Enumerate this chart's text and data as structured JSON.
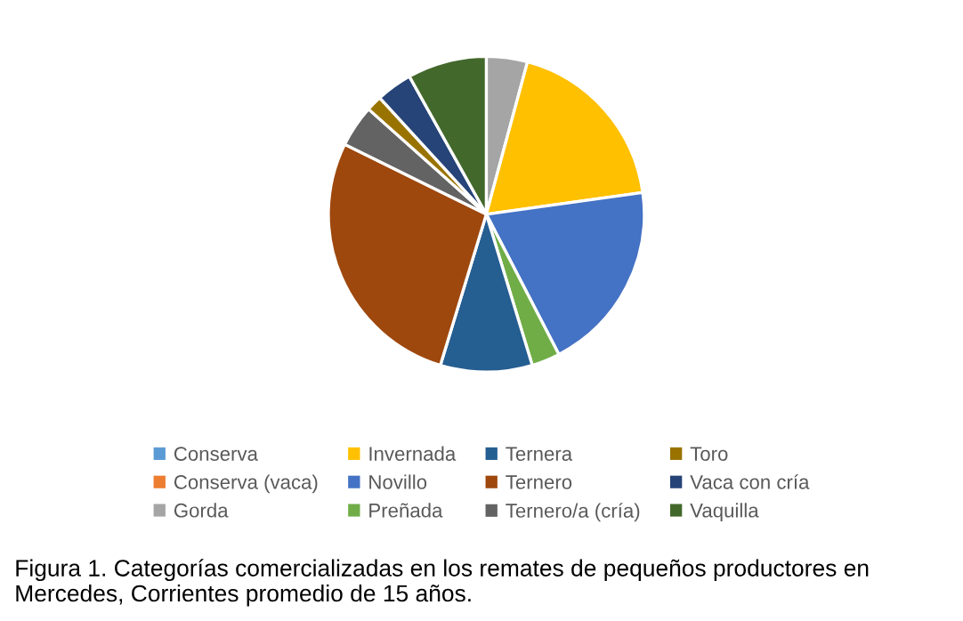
{
  "chart_data": {
    "type": "pie",
    "categories": [
      "Conserva",
      "Conserva (vaca)",
      "Gorda",
      "Invernada",
      "Novillo",
      "Preñada",
      "Ternera",
      "Ternero",
      "Ternero/a (cría)",
      "Toro",
      "Vaca con cría",
      "Vaquilla"
    ],
    "values": [
      null,
      null,
      4.2,
      18.6,
      19.6,
      2.9,
      9.4,
      27.6,
      4.3,
      1.6,
      3.7,
      8.1
    ],
    "colors": [
      "#5b9bd5",
      "#ed7d31",
      "#a5a5a5",
      "#ffc000",
      "#4472c4",
      "#70ad47",
      "#255e91",
      "#9e480e",
      "#636363",
      "#997300",
      "#264478",
      "#43682b"
    ],
    "legend": "bottom",
    "annotations": [
      "Figura 1. Categorías comercializadas en los remates de pequeños productores en Mercedes, Corrientes promedio de 15 años."
    ]
  }
}
